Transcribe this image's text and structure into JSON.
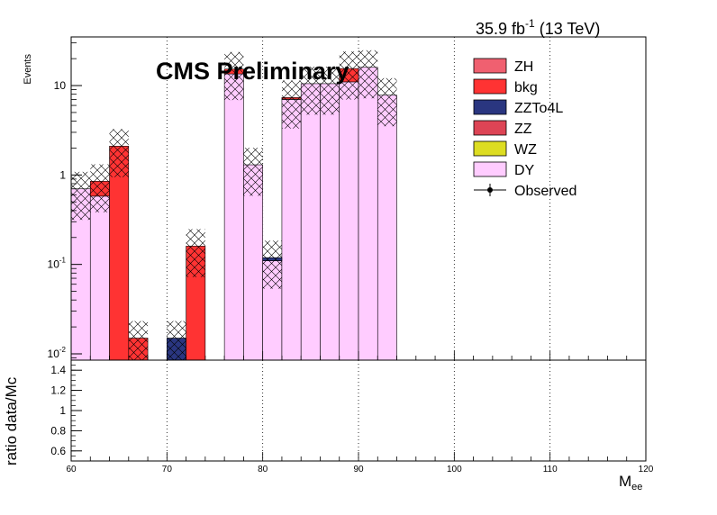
{
  "chart_data": {
    "type": "stacked-histogram",
    "lumi": {
      "value": "35.9 fb",
      "sup": "-1",
      "energy": " (13 TeV)"
    },
    "watermark": "CMS Preliminary",
    "ylabel": "Events",
    "xlabel": {
      "main": "M",
      "sub": "ee"
    },
    "ratio_ylabel": "ratio data/Mc",
    "yscale": "log",
    "ylim": [
      0.0085,
      35
    ],
    "xlim": [
      60,
      120
    ],
    "ratio_ylim": [
      0.5,
      1.5
    ],
    "bin_edges": [
      60,
      62,
      64,
      66,
      68,
      70,
      72,
      74,
      76,
      78,
      80,
      82,
      84,
      86,
      88,
      90,
      92,
      94
    ],
    "x_ticks": [
      "60",
      "70",
      "80",
      "90",
      "100",
      "110",
      "120"
    ],
    "x_tick_values": [
      60,
      70,
      80,
      90,
      100,
      110,
      120
    ],
    "y_ticks": [
      {
        "value": 0.01,
        "base": "10",
        "sup": "-2"
      },
      {
        "value": 0.1,
        "base": "10",
        "sup": "-1"
      },
      {
        "value": 1,
        "base": "1",
        "sup": ""
      },
      {
        "value": 10,
        "base": "10",
        "sup": ""
      }
    ],
    "ratio_y_ticks": [
      "0.6",
      "0.8",
      "1",
      "1.2",
      "1.4"
    ],
    "ratio_y_tick_values": [
      0.6,
      0.8,
      1.0,
      1.2,
      1.4
    ],
    "series": [
      {
        "name": "DY",
        "color": "#ffccff",
        "values": [
          0.7,
          0.58,
          0,
          0,
          0,
          0,
          0,
          0,
          13.5,
          1.3,
          0.11,
          7.0,
          10.5,
          10.5,
          11.0,
          16.0,
          7.8
        ]
      },
      {
        "name": "WZ",
        "color": "#dddd22",
        "values": [
          0,
          0,
          0,
          0,
          0,
          0,
          0,
          0,
          0,
          0,
          0,
          0,
          0,
          0,
          0,
          0,
          0
        ]
      },
      {
        "name": "ZZ",
        "color": "#dd4455",
        "values": [
          0,
          0,
          0,
          0,
          0,
          0,
          0,
          0,
          0,
          0,
          0,
          0.05,
          0,
          0,
          0,
          0,
          0
        ]
      },
      {
        "name": "ZZTo4L",
        "color": "#2a3680",
        "values": [
          0,
          0,
          0,
          0,
          0,
          0.015,
          0,
          0,
          0,
          0,
          0.009,
          0,
          0,
          0,
          0,
          0,
          0
        ]
      },
      {
        "name": "bkg",
        "color": "#ff3333",
        "values": [
          0,
          0.27,
          2.1,
          0.015,
          0,
          0,
          0.16,
          0,
          1.8,
          0,
          0,
          0.3,
          0,
          0,
          4.5,
          0,
          0
        ]
      },
      {
        "name": "ZH",
        "color": "#f06070",
        "values": [
          0,
          0,
          0,
          0,
          0,
          0,
          0,
          0,
          0,
          0,
          0,
          0,
          0,
          0,
          0,
          0,
          0
        ]
      }
    ],
    "legend": [
      {
        "label": "ZH",
        "color": "#f06070",
        "kind": "box"
      },
      {
        "label": "bkg",
        "color": "#ff3333",
        "kind": "box"
      },
      {
        "label": "ZZTo4L",
        "color": "#2a3680",
        "kind": "box"
      },
      {
        "label": "ZZ",
        "color": "#dd4455",
        "kind": "box"
      },
      {
        "label": "WZ",
        "color": "#dddd22",
        "kind": "box"
      },
      {
        "label": "DY",
        "color": "#ffccff",
        "kind": "box"
      },
      {
        "label": "Observed",
        "color": "#000000",
        "kind": "marker"
      }
    ],
    "legend_position": "top-right",
    "grid": "vertical-dotted",
    "uncertainty_fraction": 0.55
  }
}
